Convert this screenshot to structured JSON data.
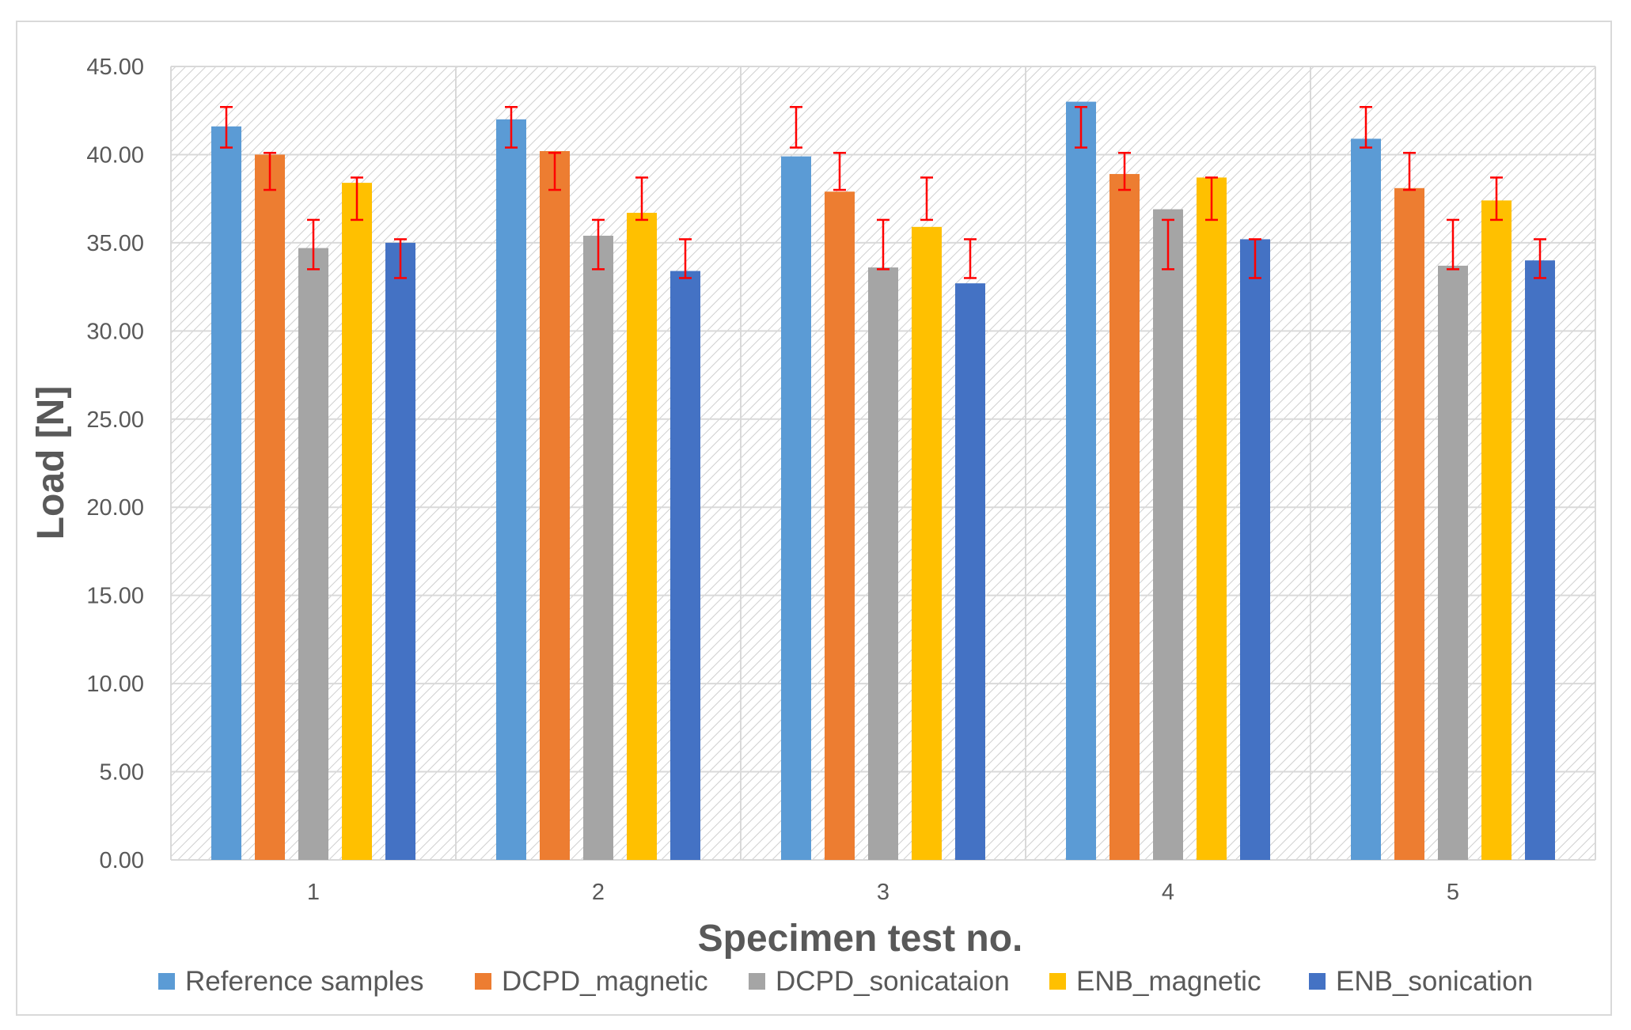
{
  "chart_data": {
    "type": "bar",
    "title": "",
    "xlabel": "Specimen test no.",
    "ylabel": "Load [N]",
    "ylim": [
      0,
      45
    ],
    "yticks": [
      "0.00",
      "5.00",
      "10.00",
      "15.00",
      "20.00",
      "25.00",
      "30.00",
      "35.00",
      "40.00",
      "45.00"
    ],
    "categories": [
      "1",
      "2",
      "3",
      "4",
      "5"
    ],
    "grid": true,
    "legend_position": "bottom",
    "series": [
      {
        "name": "Reference samples",
        "color": "#5b9bd5",
        "values": [
          41.6,
          42.0,
          39.9,
          43.0,
          40.9
        ],
        "error_low": [
          40.4,
          40.4,
          40.4,
          40.4,
          40.4
        ],
        "error_high": [
          42.7,
          42.7,
          42.7,
          42.7,
          42.7
        ]
      },
      {
        "name": "DCPD_magnetic",
        "color": "#ed7d31",
        "values": [
          40.0,
          40.2,
          37.9,
          38.9,
          38.1
        ],
        "error_low": [
          38.0,
          38.0,
          38.0,
          38.0,
          38.0
        ],
        "error_high": [
          40.1,
          40.1,
          40.1,
          40.1,
          40.1
        ]
      },
      {
        "name": "DCPD_sonicataion",
        "color": "#a5a5a5",
        "values": [
          34.7,
          35.4,
          33.6,
          36.9,
          33.7
        ],
        "error_low": [
          33.5,
          33.5,
          33.5,
          33.5,
          33.5
        ],
        "error_high": [
          36.3,
          36.3,
          36.3,
          36.3,
          36.3
        ]
      },
      {
        "name": "ENB_magnetic",
        "color": "#ffc000",
        "values": [
          38.4,
          36.7,
          35.9,
          38.7,
          37.4
        ],
        "error_low": [
          36.3,
          36.3,
          36.3,
          36.3,
          36.3
        ],
        "error_high": [
          38.7,
          38.7,
          38.7,
          38.7,
          38.7
        ]
      },
      {
        "name": "ENB_sonication",
        "color": "#4472c4",
        "values": [
          35.0,
          33.4,
          32.7,
          35.2,
          34.0
        ],
        "error_low": [
          33.0,
          33.0,
          33.0,
          33.0,
          33.0
        ],
        "error_high": [
          35.2,
          35.2,
          35.2,
          35.2,
          35.2
        ]
      }
    ],
    "error_bar_color": "#ff0000"
  }
}
